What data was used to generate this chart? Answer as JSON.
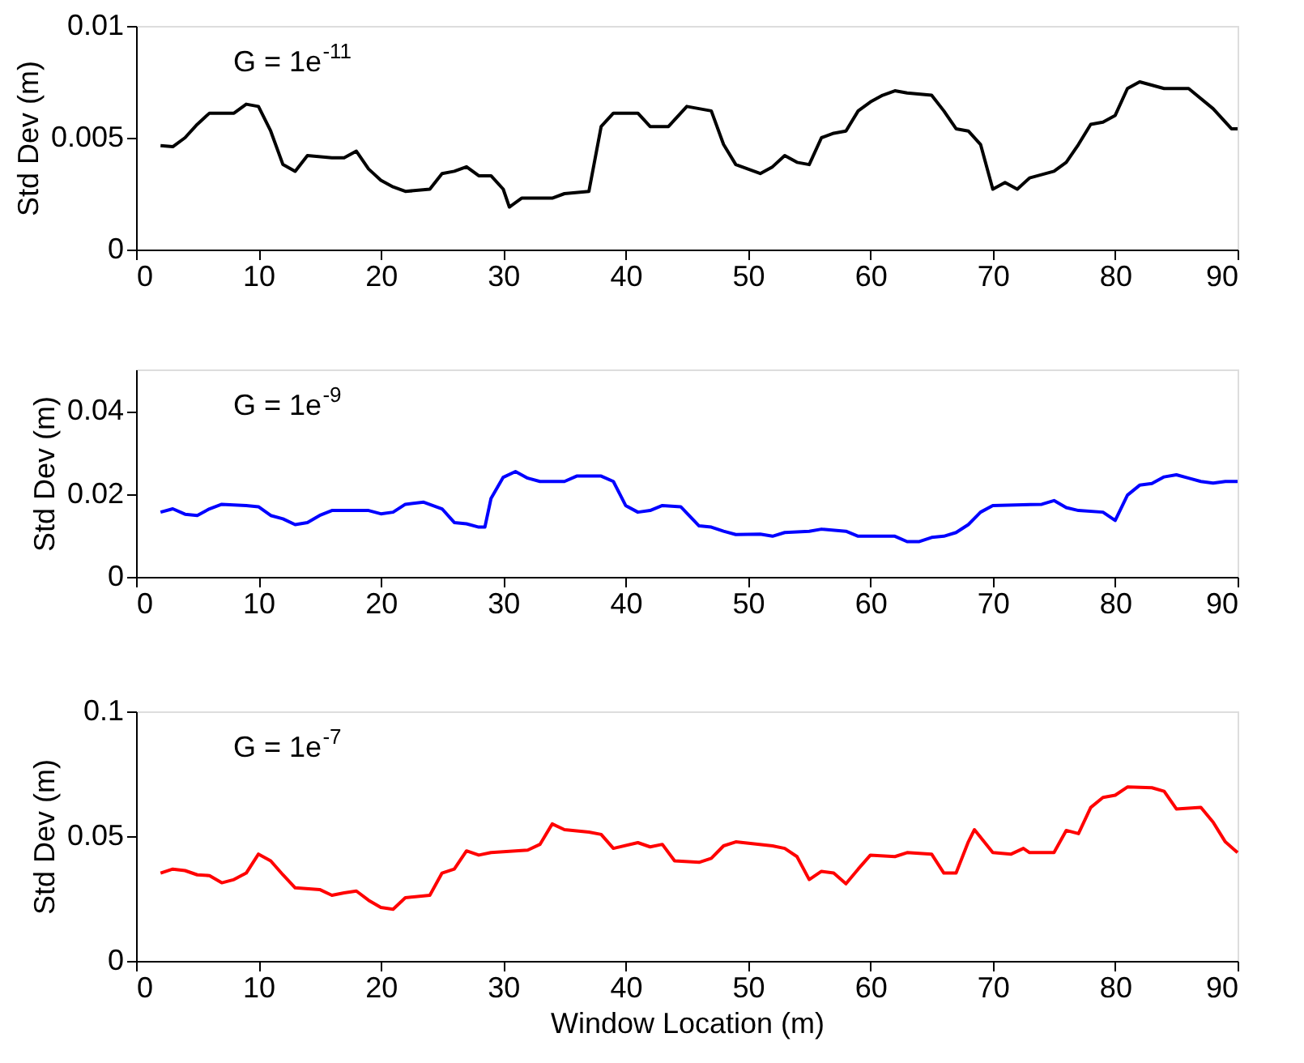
{
  "chart_data": [
    {
      "type": "line",
      "ylabel": "Std Dev (m)",
      "annotations": [
        "G = 1e$^{-11}$"
      ],
      "xlim": [
        0,
        90
      ],
      "xticks": [
        0,
        10,
        20,
        30,
        40,
        50,
        60,
        70,
        80,
        90
      ],
      "ylim": [
        0,
        0.01
      ],
      "yticks": [
        0,
        0.005,
        0.01
      ],
      "grid": false,
      "series": [
        {
          "color": "#000000",
          "x": [
            2,
            3,
            4,
            5,
            6,
            8,
            9,
            10,
            11,
            12,
            13,
            14,
            16,
            17,
            18,
            19,
            20,
            21,
            22,
            24,
            25,
            26,
            27,
            28,
            29,
            30,
            30.5,
            31.5,
            34,
            35,
            37,
            38,
            39,
            41,
            42,
            43.5,
            45,
            47,
            48,
            49,
            50,
            51,
            52,
            53,
            54,
            55,
            56,
            57,
            58,
            59,
            60,
            61,
            62,
            63,
            65,
            66,
            67,
            68,
            69,
            70,
            71,
            72,
            73,
            75,
            76,
            77,
            78,
            79,
            80,
            81,
            82,
            84,
            86,
            88,
            89.5,
            90
          ],
          "values": [
            0.00465,
            0.0046,
            0.005,
            0.0056,
            0.0061,
            0.0061,
            0.0065,
            0.0064,
            0.0053,
            0.0038,
            0.0035,
            0.0042,
            0.0041,
            0.0041,
            0.0044,
            0.0036,
            0.0031,
            0.0028,
            0.0026,
            0.0027,
            0.0034,
            0.0035,
            0.0037,
            0.0033,
            0.0033,
            0.0027,
            0.0019,
            0.0023,
            0.0023,
            0.0025,
            0.0026,
            0.0055,
            0.0061,
            0.0061,
            0.0055,
            0.0055,
            0.0064,
            0.0062,
            0.0047,
            0.0038,
            0.0036,
            0.0034,
            0.0037,
            0.0042,
            0.0039,
            0.0038,
            0.005,
            0.0052,
            0.0053,
            0.0062,
            0.0066,
            0.0069,
            0.0071,
            0.007,
            0.0069,
            0.0062,
            0.0054,
            0.0053,
            0.0047,
            0.0027,
            0.003,
            0.0027,
            0.0032,
            0.0035,
            0.0039,
            0.0047,
            0.0056,
            0.0057,
            0.006,
            0.0072,
            0.0075,
            0.0072,
            0.0072,
            0.0063,
            0.0054,
            0.0054
          ]
        }
      ]
    },
    {
      "type": "line",
      "ylabel": "Std Dev (m)",
      "annotations": [
        "G = 1e$^{-9}$"
      ],
      "xlim": [
        0,
        90
      ],
      "xticks": [
        0,
        10,
        20,
        30,
        40,
        50,
        60,
        70,
        80,
        90
      ],
      "ylim": [
        0,
        0.05
      ],
      "yticks": [
        0,
        0.02,
        0.04
      ],
      "grid": false,
      "series": [
        {
          "color": "#0000ff",
          "x": [
            2,
            3,
            4,
            5,
            6,
            7,
            9,
            10,
            11,
            12,
            13,
            14,
            15,
            16,
            19,
            20,
            21,
            22,
            23.5,
            25,
            26,
            27,
            28,
            28.5,
            29,
            30,
            31,
            32,
            33,
            35,
            36,
            38,
            39,
            40,
            41,
            42,
            43,
            44.5,
            46,
            47,
            48,
            49,
            51,
            52,
            53,
            55,
            56,
            58,
            59,
            62,
            63,
            64,
            65,
            66,
            67,
            68,
            69,
            70,
            74,
            75,
            76,
            77,
            79,
            80,
            81,
            82,
            83,
            84,
            85,
            86,
            87,
            88,
            89,
            90
          ],
          "values": [
            0.0156,
            0.0164,
            0.0151,
            0.0148,
            0.0164,
            0.0175,
            0.0172,
            0.0169,
            0.0148,
            0.014,
            0.0126,
            0.0131,
            0.0148,
            0.016,
            0.016,
            0.0152,
            0.0156,
            0.0175,
            0.018,
            0.0164,
            0.0131,
            0.0128,
            0.012,
            0.012,
            0.0189,
            0.024,
            0.0254,
            0.0238,
            0.023,
            0.023,
            0.0243,
            0.0243,
            0.023,
            0.0172,
            0.0156,
            0.016,
            0.0172,
            0.0169,
            0.0123,
            0.012,
            0.011,
            0.0102,
            0.0103,
            0.0098,
            0.0107,
            0.011,
            0.0115,
            0.011,
            0.0098,
            0.0098,
            0.0085,
            0.0085,
            0.0095,
            0.0098,
            0.0107,
            0.0126,
            0.0156,
            0.0172,
            0.0175,
            0.0184,
            0.0167,
            0.016,
            0.0156,
            0.0136,
            0.0197,
            0.0221,
            0.0225,
            0.0241,
            0.0246,
            0.0238,
            0.023,
            0.0226,
            0.023,
            0.023
          ]
        }
      ]
    },
    {
      "type": "line",
      "xlabel": "Window Location (m)",
      "ylabel": "Std Dev (m)",
      "annotations": [
        "G = 1e$^{-7}$"
      ],
      "xlim": [
        0,
        90
      ],
      "xticks": [
        0,
        10,
        20,
        30,
        40,
        50,
        60,
        70,
        80,
        90
      ],
      "ylim": [
        0,
        0.1
      ],
      "yticks": [
        0,
        0.05,
        0.1
      ],
      "grid": false,
      "series": [
        {
          "color": "#ff0000",
          "x": [
            2,
            3,
            4,
            5,
            6,
            7,
            8,
            9,
            10,
            11,
            12,
            13,
            15,
            16,
            17,
            18,
            19,
            20,
            21,
            22,
            24,
            25,
            26,
            27,
            28,
            29,
            32,
            33,
            34,
            35,
            37,
            38,
            39,
            41,
            42,
            43,
            44,
            46,
            47,
            48,
            49,
            52,
            53,
            54,
            55,
            56,
            57,
            58,
            59,
            60,
            62,
            63,
            65,
            66,
            67,
            68,
            68.5,
            70,
            71.5,
            72.5,
            73,
            75,
            76,
            77,
            78,
            79,
            80,
            81,
            83,
            84,
            85,
            87,
            88,
            89,
            90
          ],
          "values": [
            0.0352,
            0.0368,
            0.0362,
            0.0345,
            0.0342,
            0.0313,
            0.0326,
            0.0352,
            0.0428,
            0.0401,
            0.0345,
            0.0293,
            0.0286,
            0.0263,
            0.0273,
            0.028,
            0.0243,
            0.0214,
            0.0207,
            0.0253,
            0.0263,
            0.0352,
            0.0368,
            0.0441,
            0.0424,
            0.0434,
            0.0444,
            0.0467,
            0.0549,
            0.0526,
            0.0516,
            0.0507,
            0.0451,
            0.0474,
            0.0457,
            0.0467,
            0.0401,
            0.0395,
            0.0411,
            0.0461,
            0.0477,
            0.0461,
            0.0451,
            0.0418,
            0.0326,
            0.0359,
            0.0352,
            0.0309,
            0.0368,
            0.0424,
            0.0418,
            0.0434,
            0.0428,
            0.0352,
            0.0352,
            0.0477,
            0.0526,
            0.0434,
            0.0428,
            0.0451,
            0.0434,
            0.0434,
            0.0523,
            0.051,
            0.0615,
            0.0655,
            0.0664,
            0.0697,
            0.0694,
            0.068,
            0.0609,
            0.0615,
            0.0556,
            0.0477,
            0.0434
          ]
        }
      ]
    }
  ]
}
